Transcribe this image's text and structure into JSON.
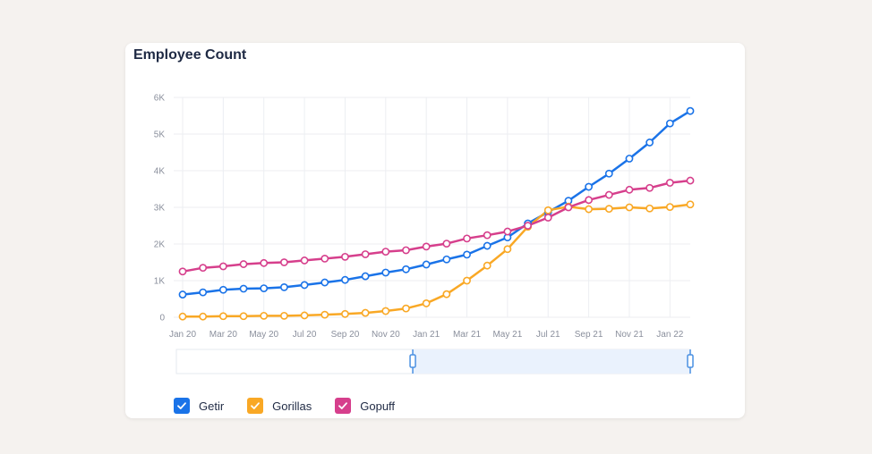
{
  "card": {
    "title": "Employee Count"
  },
  "chart_data": {
    "type": "line",
    "title": "Employee Count",
    "ylim": [
      0,
      6000
    ],
    "yticks": [
      0,
      1000,
      2000,
      3000,
      4000,
      5000,
      6000
    ],
    "ytick_labels": [
      "0",
      "1K",
      "2K",
      "3K",
      "4K",
      "5K",
      "6K"
    ],
    "x_tick_labels": [
      "Jan 20",
      "Mar 20",
      "May 20",
      "Jul 20",
      "Sep 20",
      "Nov 20",
      "Jan 21",
      "Mar 21",
      "May 21",
      "Jul 21",
      "Sep 21",
      "Nov 21",
      "Jan 22"
    ],
    "x": [
      "Jan 20",
      "Feb 20",
      "Mar 20",
      "Apr 20",
      "May 20",
      "Jun 20",
      "Jul 20",
      "Aug 20",
      "Sep 20",
      "Oct 20",
      "Nov 20",
      "Dec 20",
      "Jan 21",
      "Feb 21",
      "Mar 21",
      "Apr 21",
      "May 21",
      "Jun 21",
      "Jul 21",
      "Aug 21",
      "Sep 21",
      "Oct 21",
      "Nov 21",
      "Dec 21",
      "Jan 22",
      "Feb 22"
    ],
    "grid": true,
    "legend_position": "bottom-left",
    "series": [
      {
        "name": "Getir",
        "color": "#1a73e8",
        "values": [
          620,
          680,
          750,
          780,
          790,
          820,
          880,
          950,
          1020,
          1120,
          1220,
          1310,
          1440,
          1580,
          1710,
          1950,
          2180,
          2560,
          2870,
          3180,
          3560,
          3920,
          4330,
          4770,
          5290,
          5630
        ]
      },
      {
        "name": "Gorillas",
        "color": "#f9a825",
        "values": [
          20,
          20,
          30,
          30,
          40,
          40,
          50,
          70,
          90,
          120,
          170,
          240,
          380,
          630,
          1000,
          1410,
          1860,
          2470,
          2920,
          3020,
          2950,
          2960,
          3000,
          2970,
          3010,
          3080
        ]
      },
      {
        "name": "Gopuff",
        "color": "#d63f8c",
        "values": [
          1250,
          1350,
          1390,
          1450,
          1480,
          1500,
          1550,
          1600,
          1650,
          1720,
          1790,
          1830,
          1930,
          2010,
          2150,
          2240,
          2340,
          2500,
          2720,
          3000,
          3200,
          3340,
          3480,
          3530,
          3670,
          3730
        ]
      }
    ]
  },
  "range_selector": {
    "start": 0.46,
    "end": 1.0
  },
  "legend": [
    {
      "label": "Getir",
      "color": "#1a73e8",
      "checked": true
    },
    {
      "label": "Gorillas",
      "color": "#f9a825",
      "checked": true
    },
    {
      "label": "Gopuff",
      "color": "#d63f8c",
      "checked": true
    }
  ]
}
